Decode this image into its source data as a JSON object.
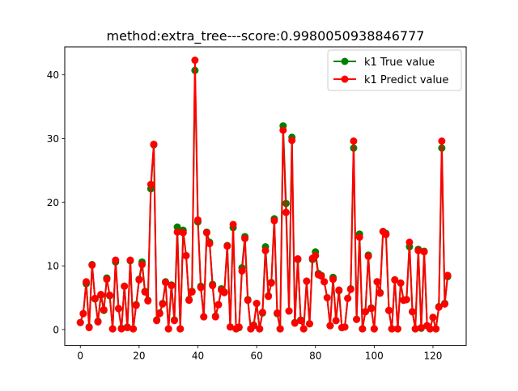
{
  "chart_data": {
    "type": "line",
    "title": "method:extra_tree---score:0.9980050938846777",
    "xlabel": "",
    "ylabel": "",
    "xlim": [
      -5.3,
      131.3
    ],
    "ylim": [
      -2.5,
      44.4
    ],
    "x_ticks": [
      0,
      20,
      40,
      60,
      80,
      100,
      120
    ],
    "y_ticks": [
      0,
      10,
      20,
      30,
      40
    ],
    "grid": false,
    "legend_position": "upper right",
    "x": [
      0,
      1,
      2,
      3,
      4,
      5,
      6,
      7,
      8,
      9,
      10,
      11,
      12,
      13,
      14,
      15,
      16,
      17,
      18,
      19,
      20,
      21,
      22,
      23,
      24,
      25,
      26,
      27,
      28,
      29,
      30,
      31,
      32,
      33,
      34,
      35,
      36,
      37,
      38,
      39,
      40,
      41,
      42,
      43,
      44,
      45,
      46,
      47,
      48,
      49,
      50,
      51,
      52,
      53,
      54,
      55,
      56,
      57,
      58,
      59,
      60,
      61,
      62,
      63,
      64,
      65,
      66,
      67,
      68,
      69,
      70,
      71,
      72,
      73,
      74,
      75,
      76,
      77,
      78,
      79,
      80,
      81,
      82,
      83,
      84,
      85,
      86,
      87,
      88,
      89,
      90,
      91,
      92,
      93,
      94,
      95,
      96,
      97,
      98,
      99,
      100,
      101,
      102,
      103,
      104,
      105,
      106,
      107,
      108,
      109,
      110,
      111,
      112,
      113,
      114,
      115,
      116,
      117,
      118,
      119,
      120,
      121,
      122,
      123,
      124,
      125
    ],
    "series": [
      {
        "name": "k1 True value",
        "color": "#008000",
        "values": [
          1.1,
          2.5,
          7.2,
          0.4,
          10.2,
          4.8,
          1.3,
          5.4,
          3.0,
          8.1,
          5.3,
          0.1,
          10.6,
          3.3,
          0.2,
          6.8,
          0.4,
          10.8,
          0.1,
          3.9,
          7.9,
          10.6,
          6.0,
          4.6,
          22.1,
          29.0,
          1.5,
          2.6,
          4.1,
          7.5,
          0.1,
          7.0,
          1.5,
          16.1,
          0.1,
          15.6,
          11.6,
          4.7,
          6.0,
          40.7,
          16.9,
          6.8,
          2.0,
          15.3,
          13.7,
          7.1,
          2.1,
          3.9,
          6.4,
          5.9,
          13.2,
          0.4,
          16.0,
          0.1,
          0.3,
          9.7,
          14.6,
          4.7,
          0.1,
          0.7,
          4.1,
          0.1,
          2.6,
          13.0,
          5.3,
          7.4,
          17.4,
          2.5,
          0.1,
          32.0,
          19.8,
          2.9,
          30.2,
          1.1,
          11.0,
          1.5,
          0.1,
          7.6,
          0.9,
          11.0,
          12.2,
          8.8,
          8.5,
          7.5,
          5.0,
          0.6,
          8.2,
          1.4,
          6.1,
          0.3,
          0.4,
          4.9,
          6.4,
          28.5,
          1.6,
          15.0,
          0.1,
          2.8,
          11.7,
          3.4,
          0.1,
          7.5,
          5.8,
          15.4,
          15.1,
          3.0,
          0.1,
          7.8,
          0.1,
          7.3,
          4.6,
          4.7,
          13.0,
          2.8,
          0.1,
          12.6,
          0.2,
          12.3,
          0.6,
          0.1,
          1.9,
          0.1,
          3.6,
          28.5,
          4.1,
          8.3
        ]
      },
      {
        "name": "k1 Predict value",
        "color": "#ff0000",
        "values": [
          1.1,
          2.5,
          7.5,
          0.3,
          10.1,
          4.9,
          1.2,
          5.5,
          3.1,
          7.9,
          5.4,
          0.1,
          10.9,
          3.3,
          0.1,
          6.8,
          0.3,
          10.9,
          0.1,
          3.8,
          7.8,
          10.2,
          5.9,
          4.5,
          22.8,
          29.1,
          1.4,
          2.5,
          4.0,
          7.4,
          0.1,
          6.9,
          1.4,
          15.3,
          0.1,
          15.2,
          11.6,
          4.6,
          5.9,
          42.3,
          17.2,
          6.6,
          2.0,
          15.2,
          13.5,
          6.9,
          2.0,
          3.9,
          6.2,
          5.8,
          13.1,
          0.4,
          16.5,
          0.1,
          0.4,
          9.2,
          14.3,
          4.6,
          0.1,
          0.6,
          4.1,
          0.1,
          2.7,
          12.4,
          5.2,
          7.3,
          17.1,
          2.6,
          0.1,
          31.3,
          18.4,
          2.9,
          29.7,
          1.0,
          11.1,
          1.4,
          0.1,
          7.6,
          0.9,
          11.2,
          11.6,
          8.6,
          8.4,
          7.5,
          5.0,
          0.6,
          7.9,
          1.4,
          6.2,
          0.3,
          0.4,
          4.9,
          6.3,
          29.6,
          1.6,
          14.5,
          0.1,
          2.8,
          11.5,
          3.3,
          0.1,
          7.5,
          5.7,
          15.4,
          14.9,
          3.0,
          0.1,
          7.8,
          0.1,
          7.3,
          4.6,
          4.7,
          13.7,
          2.8,
          0.1,
          12.4,
          0.3,
          12.2,
          0.6,
          0.1,
          1.9,
          0.1,
          3.5,
          29.6,
          4.0,
          8.5
        ]
      }
    ]
  }
}
